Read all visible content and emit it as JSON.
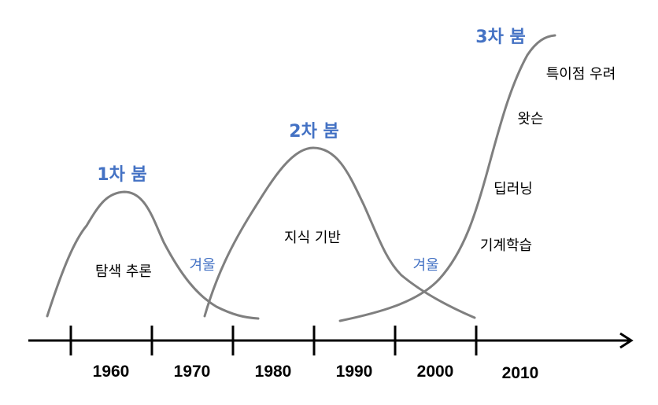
{
  "colors": {
    "boom": "#4472C4",
    "winter": "#4472C4",
    "curve": "#7F7F7F",
    "axis": "#000000",
    "text": "#000000"
  },
  "booms": {
    "first": "1차 붐",
    "second": "2차 붐",
    "third": "3차 붐"
  },
  "winters": {
    "first": "겨울",
    "second": "겨울"
  },
  "phases": {
    "search_reasoning": "탐색 추론",
    "knowledge_based": "지식 기반",
    "machine_learning": "기계학습",
    "deep_learning": "딥러닝",
    "watson": "왓슨",
    "singularity_concern": "특이점 우려"
  },
  "timeline": {
    "years": [
      "1960",
      "1970",
      "1980",
      "1990",
      "2000",
      "2010"
    ]
  }
}
